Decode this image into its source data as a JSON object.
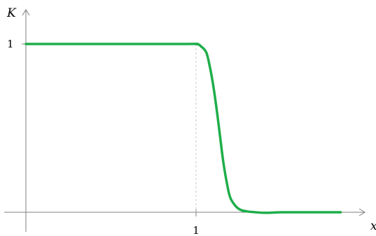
{
  "colors": {
    "curve": "#1fae4a",
    "axis": "#7f7f7f",
    "guide": "#c8c8c8"
  },
  "chart_data": {
    "type": "line",
    "title": "",
    "xlabel": "x",
    "ylabel": "K",
    "xlim": [
      -0.1,
      2.0
    ],
    "ylim": [
      -0.05,
      1.2
    ],
    "x_ticks": [
      {
        "value": 1,
        "label": "1"
      }
    ],
    "y_ticks": [
      {
        "value": 1,
        "label": "1"
      }
    ],
    "grid": false,
    "legend": "none",
    "guides": [
      {
        "axis": "x",
        "value": 1
      }
    ],
    "series": [
      {
        "color": "#1fae4a",
        "x": [
          0,
          0.9,
          1.0,
          1.03,
          1.06,
          1.08,
          1.1,
          1.12,
          1.14,
          1.16,
          1.18,
          1.2,
          1.23,
          1.26,
          1.3,
          1.35,
          1.4,
          1.45,
          1.5,
          1.6,
          1.75,
          1.85
        ],
        "y": [
          1,
          1,
          1,
          0.985,
          0.95,
          0.87,
          0.76,
          0.62,
          0.46,
          0.3,
          0.18,
          0.09,
          0.04,
          0.015,
          0.005,
          0.0,
          -0.003,
          -0.002,
          0.0,
          0.0,
          0.0,
          0.0
        ]
      }
    ]
  }
}
